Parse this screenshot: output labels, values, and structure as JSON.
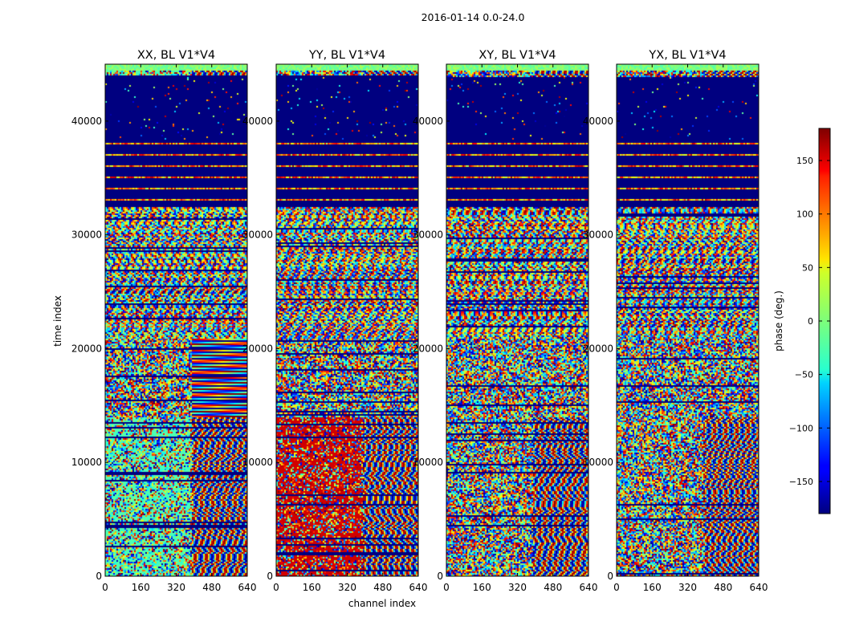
{
  "figure_title": "2016-01-14 0.0-24.0",
  "chart_data": {
    "type": "heatmap",
    "suptitle": "2016-01-14 0.0-24.0",
    "xlabel": "channel index",
    "ylabel": "time index",
    "xlim": [
      0,
      640
    ],
    "ylim": [
      0,
      45000
    ],
    "xticks": [
      0,
      160,
      320,
      480,
      640
    ],
    "yticks": [
      0,
      10000,
      20000,
      30000,
      40000
    ],
    "xtick_labels": [
      "0",
      "160",
      "320",
      "480",
      "640"
    ],
    "ytick_labels": [
      "0",
      "10000",
      "20000",
      "30000",
      "40000"
    ],
    "panels": [
      {
        "title": "XX, BL V1*V4",
        "pol": "XX"
      },
      {
        "title": "YY, BL V1*V4",
        "pol": "YY"
      },
      {
        "title": "XY, BL V1*V4",
        "pol": "XY"
      },
      {
        "title": "YX, BL V1*V4",
        "pol": "YX"
      }
    ],
    "colorbar": {
      "label": "phase (deg.)",
      "colormap": "jet",
      "range": [
        -180,
        180
      ],
      "ticks": [
        -150,
        -100,
        -50,
        0,
        50,
        100,
        150
      ],
      "tick_labels": [
        "−150",
        "−100",
        "−50",
        "0",
        "50",
        "100",
        "150"
      ]
    },
    "time_segments": [
      {
        "from": 44500,
        "to": 45000,
        "kind": "band"
      },
      {
        "from": 38500,
        "to": 44000,
        "kind": "flagged"
      },
      {
        "from": 32500,
        "to": 38500,
        "kind": "flagged-with-lines"
      },
      {
        "from": 21000,
        "to": 32500,
        "kind": "fringes"
      },
      {
        "from": 14000,
        "to": 21000,
        "kind": "noise"
      },
      {
        "from": 0,
        "to": 14000,
        "kind": "fringes-waves"
      }
    ]
  }
}
